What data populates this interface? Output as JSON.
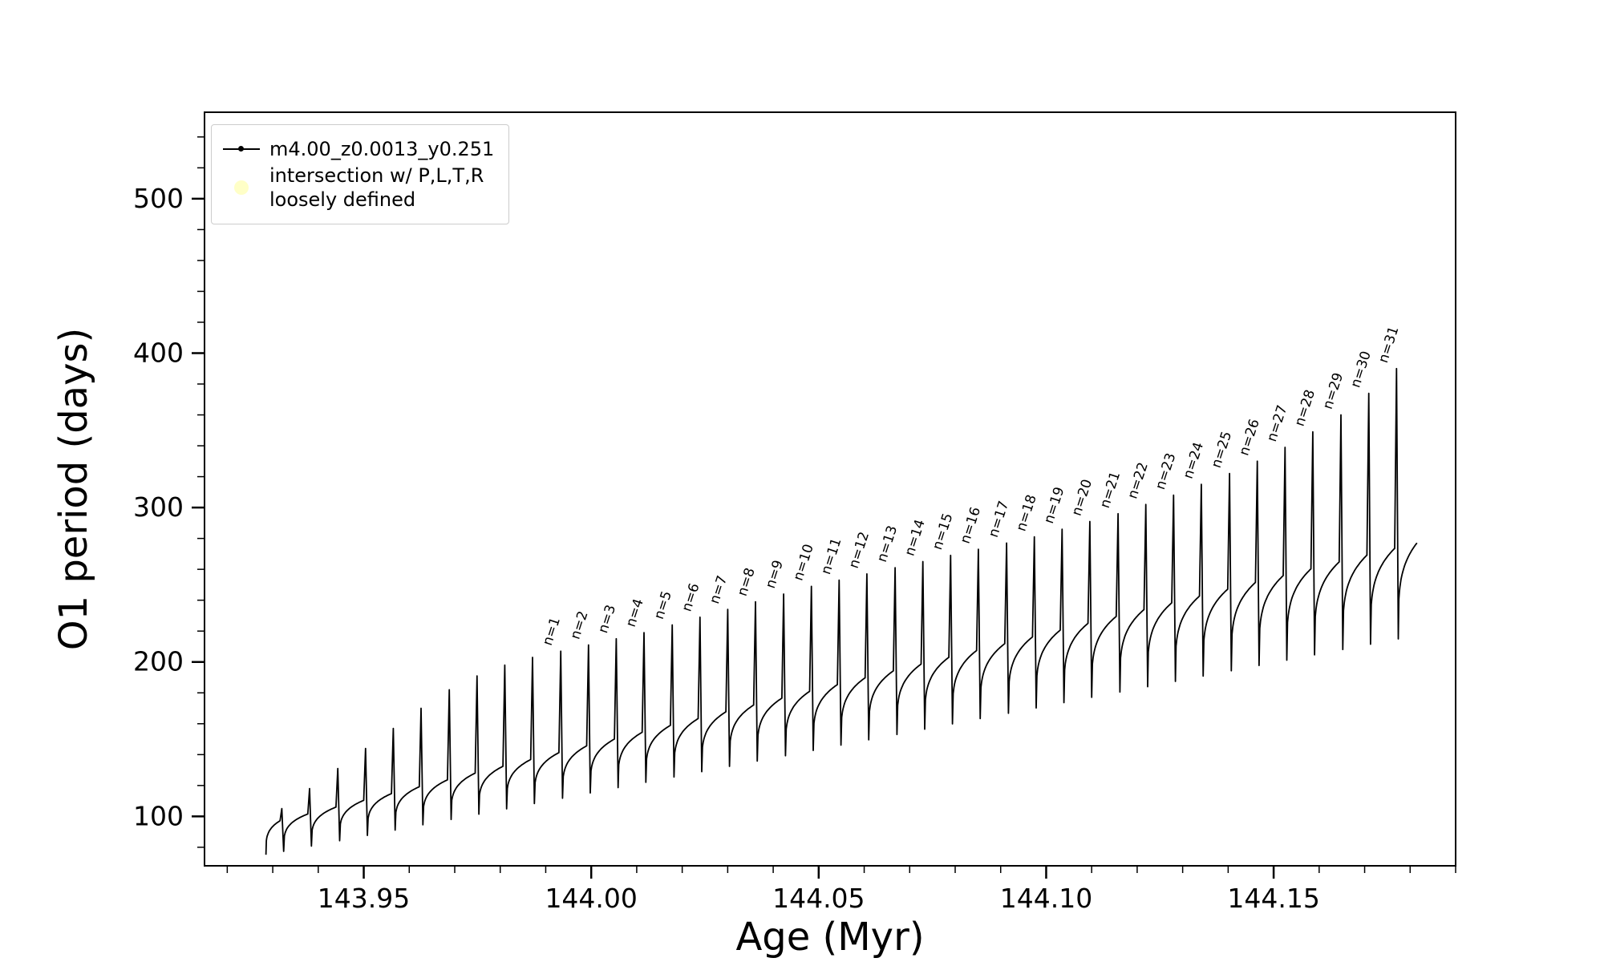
{
  "page": {
    "background": "#ffffff"
  },
  "chart_data": {
    "type": "line",
    "title": "",
    "xlabel": "Age (Myr)",
    "ylabel": "O1 period (days)",
    "xlim": [
      143.915,
      144.19
    ],
    "ylim": [
      68,
      556
    ],
    "xticks": [
      143.95,
      144.0,
      144.05,
      144.1,
      144.15
    ],
    "xtick_labels": [
      "143.95",
      "144.00",
      "144.05",
      "144.10",
      "144.15"
    ],
    "yticks": [
      100,
      200,
      300,
      400,
      500
    ],
    "ytick_labels": [
      "100",
      "200",
      "300",
      "400",
      "500"
    ],
    "x_minor_step": 0.01,
    "y_minor_step": 20,
    "grid": false,
    "legend_position": "upper left",
    "legend": {
      "series_label": "m4.00_z0.0013_y0.251",
      "marker_label_line1": "intersection w/ P,L,T,R",
      "marker_label_line2": "loosely defined",
      "series_color": "#000000",
      "marker_color": "#ffff99"
    },
    "series": [
      {
        "name": "m4.00_z0.0013_y0.251",
        "color": "#000000",
        "style": "line-with-dot-markers",
        "baseline": {
          "x_start": 143.93,
          "y_start": 88,
          "x_end": 144.18,
          "y_end": 268
        },
        "dip_depth": {
          "base": 12,
          "fraction": 0.22
        },
        "plateau_offset": 8,
        "spikes": [
          {
            "x": 143.932,
            "peak": 105,
            "label": ""
          },
          {
            "x": 143.9381,
            "peak": 118,
            "label": ""
          },
          {
            "x": 143.9443,
            "peak": 131,
            "label": ""
          },
          {
            "x": 143.9504,
            "peak": 144,
            "label": ""
          },
          {
            "x": 143.9565,
            "peak": 157,
            "label": ""
          },
          {
            "x": 143.9626,
            "peak": 170,
            "label": ""
          },
          {
            "x": 143.9688,
            "peak": 182,
            "label": ""
          },
          {
            "x": 143.9749,
            "peak": 191,
            "label": ""
          },
          {
            "x": 143.981,
            "peak": 198,
            "label": ""
          },
          {
            "x": 143.9871,
            "peak": 203,
            "label": ""
          },
          {
            "x": 143.9933,
            "peak": 207,
            "label": "n=1"
          },
          {
            "x": 143.9994,
            "peak": 211,
            "label": "n=2"
          },
          {
            "x": 144.0055,
            "peak": 215,
            "label": "n=3"
          },
          {
            "x": 144.0116,
            "peak": 219,
            "label": "n=4"
          },
          {
            "x": 144.0178,
            "peak": 224,
            "label": "n=5"
          },
          {
            "x": 144.0239,
            "peak": 229,
            "label": "n=6"
          },
          {
            "x": 144.03,
            "peak": 234,
            "label": "n=7"
          },
          {
            "x": 144.0361,
            "peak": 239,
            "label": "n=8"
          },
          {
            "x": 144.0423,
            "peak": 244,
            "label": "n=9"
          },
          {
            "x": 144.0484,
            "peak": 249,
            "label": "n=10"
          },
          {
            "x": 144.0545,
            "peak": 253,
            "label": "n=11"
          },
          {
            "x": 144.0606,
            "peak": 257,
            "label": "n=12"
          },
          {
            "x": 144.0668,
            "peak": 261,
            "label": "n=13"
          },
          {
            "x": 144.0729,
            "peak": 265,
            "label": "n=14"
          },
          {
            "x": 144.079,
            "peak": 269,
            "label": "n=15"
          },
          {
            "x": 144.0851,
            "peak": 273,
            "label": "n=16"
          },
          {
            "x": 144.0913,
            "peak": 277,
            "label": "n=17"
          },
          {
            "x": 144.0974,
            "peak": 281,
            "label": "n=18"
          },
          {
            "x": 144.1035,
            "peak": 286,
            "label": "n=19"
          },
          {
            "x": 144.1096,
            "peak": 291,
            "label": "n=20"
          },
          {
            "x": 144.1158,
            "peak": 296,
            "label": "n=21"
          },
          {
            "x": 144.1219,
            "peak": 302,
            "label": "n=22"
          },
          {
            "x": 144.128,
            "peak": 308,
            "label": "n=23"
          },
          {
            "x": 144.1341,
            "peak": 315,
            "label": "n=24"
          },
          {
            "x": 144.1403,
            "peak": 322,
            "label": "n=25"
          },
          {
            "x": 144.1464,
            "peak": 330,
            "label": "n=26"
          },
          {
            "x": 144.1525,
            "peak": 339,
            "label": "n=27"
          },
          {
            "x": 144.1586,
            "peak": 349,
            "label": "n=28"
          },
          {
            "x": 144.1648,
            "peak": 360,
            "label": "n=29"
          },
          {
            "x": 144.1709,
            "peak": 374,
            "label": "n=30"
          },
          {
            "x": 144.177,
            "peak": 390,
            "label": "n=31"
          }
        ]
      }
    ]
  }
}
